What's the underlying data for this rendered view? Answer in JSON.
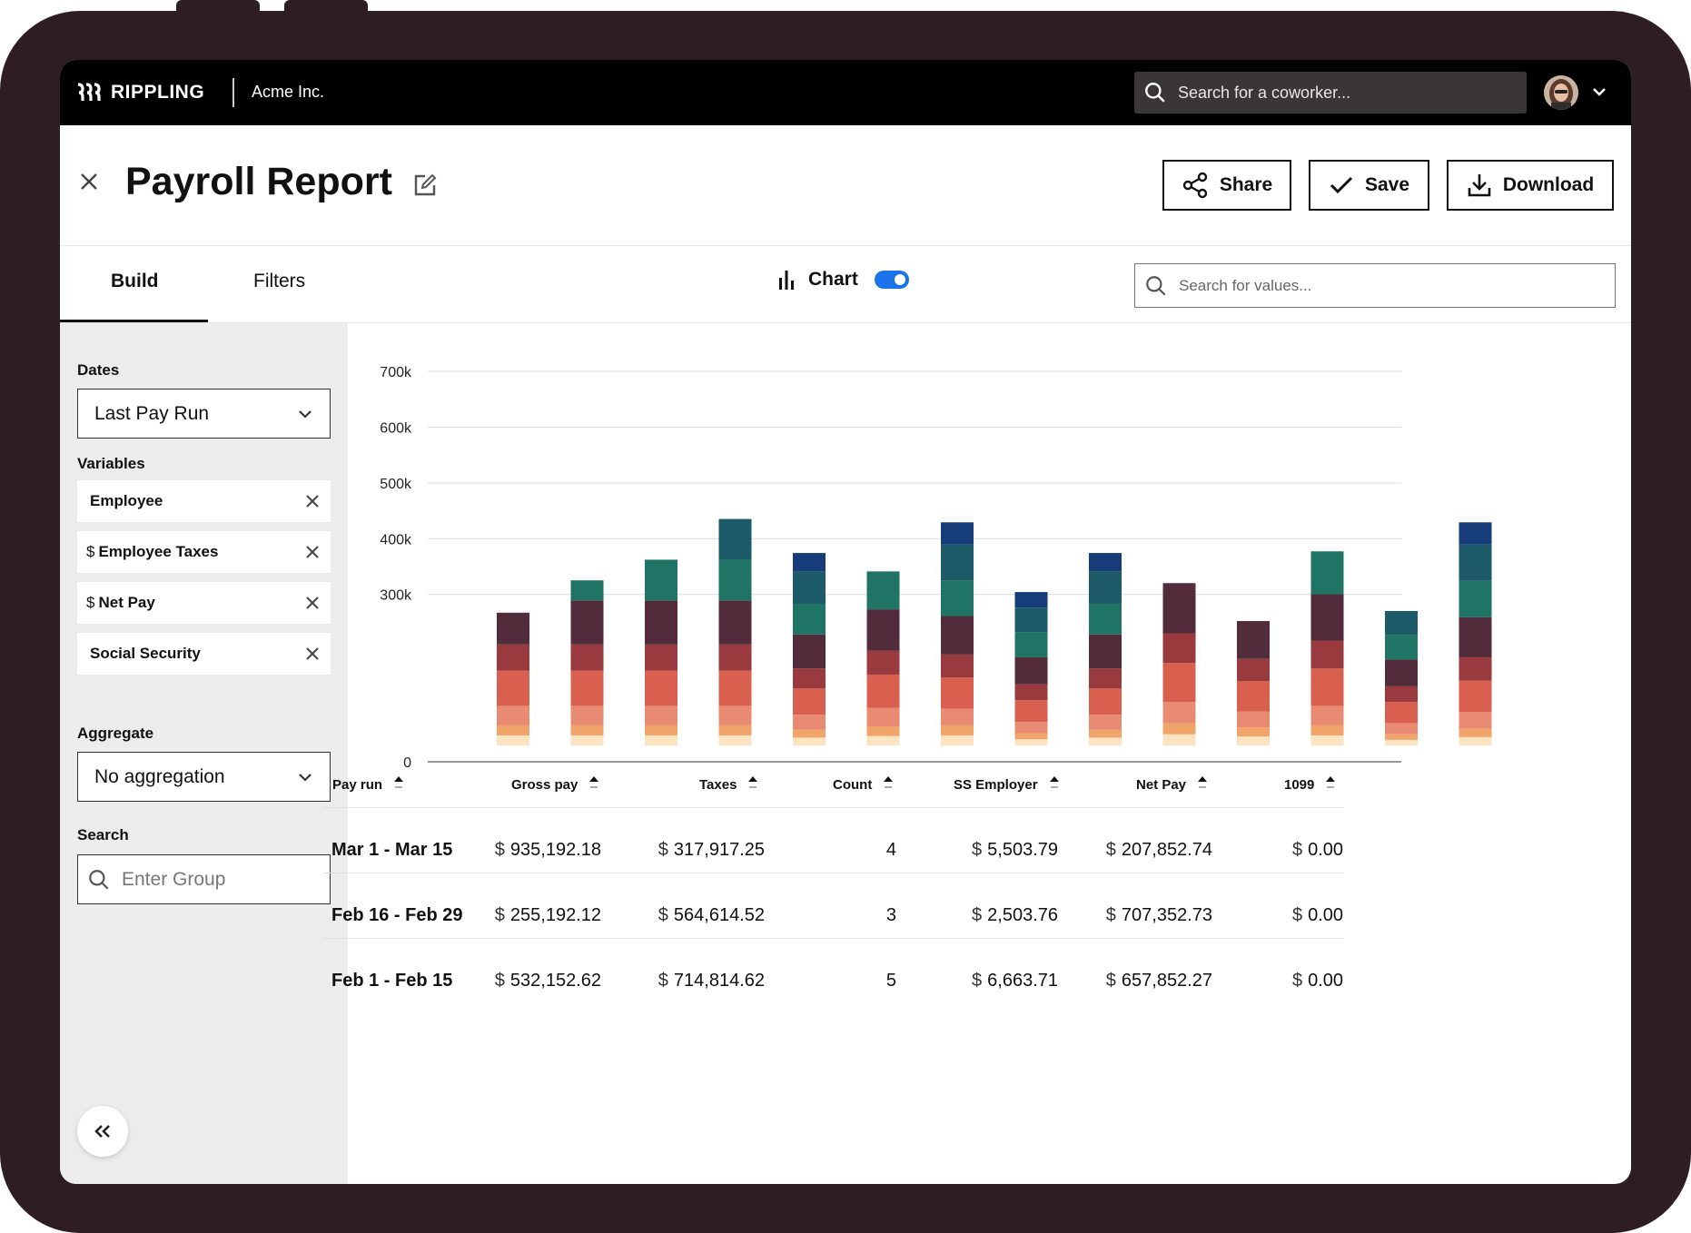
{
  "app": {
    "brand": "RIPPLING",
    "company": "Acme Inc.",
    "search_placeholder": "Search for a coworker..."
  },
  "header": {
    "title": "Payroll Report",
    "buttons": {
      "share": "Share",
      "save": "Save",
      "download": "Download"
    }
  },
  "tabs": [
    {
      "label": "Build",
      "active": true
    },
    {
      "label": "Filters",
      "active": false
    }
  ],
  "chart_toggle": {
    "label": "Chart",
    "on": true
  },
  "values_search_placeholder": "Search for values...",
  "sidebar": {
    "dates_label": "Dates",
    "dates_value": "Last Pay Run",
    "variables_label": "Variables",
    "variables": [
      {
        "label": "Employee",
        "prefix": ""
      },
      {
        "label": "Employee Taxes",
        "prefix": "$"
      },
      {
        "label": "Net Pay",
        "prefix": "$"
      },
      {
        "label": "Social Security",
        "prefix": ""
      }
    ],
    "aggregate_label": "Aggregate",
    "aggregate_value": "No aggregation",
    "search_label": "Search",
    "search_placeholder": "Enter Group"
  },
  "chart_data": {
    "type": "bar",
    "stacked": true,
    "ylim": [
      0,
      700000
    ],
    "y_ticks": [
      {
        "value": 0,
        "label": "0"
      },
      {
        "value": 300000,
        "label": "300k"
      },
      {
        "value": 400000,
        "label": "400k"
      },
      {
        "value": 500000,
        "label": "500k"
      },
      {
        "value": 600000,
        "label": "600k"
      },
      {
        "value": 700000,
        "label": "700k"
      }
    ],
    "grid": true,
    "segment_colors": [
      "#fde3c0",
      "#f0a46a",
      "#e98b72",
      "#d9604e",
      "#993a3e",
      "#522c3b",
      "#1f7465",
      "#1d5a68",
      "#173c7a"
    ],
    "stacks": [
      [
        18000,
        18000,
        35000,
        63000,
        47000,
        57000,
        0,
        0,
        0
      ],
      [
        18000,
        18000,
        35000,
        63000,
        47000,
        79000,
        36000,
        0,
        0
      ],
      [
        18000,
        18000,
        35000,
        63000,
        47000,
        79000,
        73000,
        0,
        0
      ],
      [
        18000,
        18000,
        35000,
        63000,
        47000,
        79000,
        73000,
        73000,
        0
      ],
      [
        14000,
        14000,
        27000,
        47000,
        36000,
        61000,
        55000,
        58000,
        33000
      ],
      [
        17000,
        17000,
        33000,
        60000,
        43000,
        74000,
        68000,
        0,
        0
      ],
      [
        18000,
        18000,
        30000,
        56000,
        41000,
        69000,
        64000,
        64000,
        40000
      ],
      [
        11000,
        11000,
        20000,
        39000,
        29000,
        48000,
        45000,
        44000,
        28000
      ],
      [
        14000,
        14000,
        27000,
        47000,
        36000,
        61000,
        55000,
        58000,
        33000
      ],
      [
        20000,
        20000,
        38000,
        70000,
        53000,
        90000,
        0,
        0,
        0
      ],
      [
        16000,
        16000,
        29000,
        54000,
        40000,
        68000,
        0,
        0,
        0
      ],
      [
        18000,
        18000,
        35000,
        67000,
        50000,
        83000,
        77000,
        0,
        0
      ],
      [
        10000,
        10000,
        20000,
        38000,
        28000,
        48000,
        44000,
        43000,
        0
      ],
      [
        15000,
        15000,
        30000,
        56000,
        42000,
        72000,
        65000,
        65000,
        40000
      ]
    ]
  },
  "table": {
    "columns": [
      "Pay run",
      "Gross pay",
      "Taxes",
      "Count",
      "SS Employer",
      "Net Pay",
      "1099"
    ],
    "currency": "$",
    "rows": [
      {
        "pay_run": "Mar 1 - Mar 15",
        "gross": "935,192.18",
        "taxes": "317,917.25",
        "count": "4",
        "ss": "5,503.79",
        "net": "207,852.74",
        "f1099": "0.00"
      },
      {
        "pay_run": "Feb 16 - Feb 29",
        "gross": "255,192.12",
        "taxes": "564,614.52",
        "count": "3",
        "ss": "2,503.76",
        "net": "707,352.73",
        "f1099": "0.00"
      },
      {
        "pay_run": "Feb 1 - Feb 15",
        "gross": "532,152.62",
        "taxes": "714,814.62",
        "count": "5",
        "ss": "6,663.71",
        "net": "657,852.27",
        "f1099": "0.00"
      }
    ]
  }
}
